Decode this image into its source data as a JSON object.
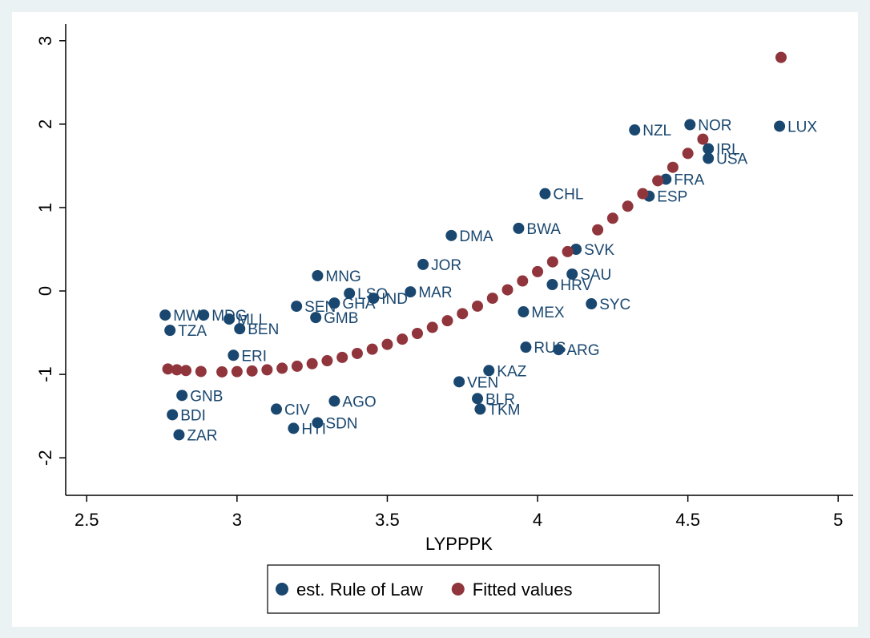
{
  "chart_data": {
    "type": "scatter",
    "x_label": "LYPPPK",
    "xlim": [
      2.43,
      5.05
    ],
    "ylim": [
      -2.45,
      3.2
    ],
    "xticks": [
      2.5,
      3,
      3.5,
      4,
      4.5,
      5
    ],
    "yticks": [
      -2,
      -1,
      0,
      1,
      2,
      3
    ],
    "grid": false,
    "legend": "bottom",
    "series": [
      {
        "name": "est. Rule of Law",
        "color": "#1a476f",
        "labels": [
          "LUX",
          "NZL",
          "NOR",
          "IRL",
          "USA",
          "FRA",
          "ESP",
          "CHL",
          "BWA",
          "SVK",
          "DMA",
          "JOR",
          "SAU",
          "HRV",
          "SYC",
          "MEX",
          "ARG",
          "RUS",
          "KAZ",
          "VEN",
          "BLR",
          "TKM",
          "MNG",
          "SEN",
          "GMB",
          "GHA",
          "LSO",
          "IND",
          "MAR",
          "MWI",
          "MDG",
          "MLI",
          "BEN",
          "TZA",
          "ERI",
          "GNB",
          "BDI",
          "ZAR",
          "CIV",
          "HTI",
          "SDN",
          "AGO"
        ],
        "x": [
          4.805,
          4.323,
          4.507,
          4.568,
          4.568,
          4.427,
          4.371,
          4.025,
          3.937,
          4.128,
          3.713,
          3.619,
          4.115,
          4.049,
          4.179,
          3.953,
          4.07,
          3.961,
          3.838,
          3.739,
          3.8,
          3.809,
          3.268,
          3.198,
          3.262,
          3.324,
          3.374,
          3.454,
          3.577,
          2.761,
          2.889,
          2.974,
          3.009,
          2.777,
          2.988,
          2.817,
          2.785,
          2.807,
          3.131,
          3.188,
          3.268,
          3.324
        ],
        "values": [
          1.975,
          1.93,
          1.994,
          1.705,
          1.59,
          1.34,
          1.137,
          1.166,
          0.751,
          0.5,
          0.665,
          0.318,
          0.202,
          0.077,
          -0.154,
          -0.25,
          -0.703,
          -0.674,
          -0.954,
          -1.089,
          -1.29,
          -1.416,
          0.183,
          -0.183,
          -0.318,
          -0.145,
          -0.029,
          -0.087,
          -0.01,
          -0.289,
          -0.289,
          -0.337,
          -0.453,
          -0.472,
          -0.771,
          -1.252,
          -1.484,
          -1.724,
          -1.416,
          -1.647,
          -1.58,
          -1.32
        ]
      },
      {
        "name": "Fitted values",
        "color": "#90353b",
        "x": [
          2.77,
          2.8,
          2.83,
          2.88,
          2.95,
          3.0,
          3.05,
          3.1,
          3.15,
          3.2,
          3.25,
          3.3,
          3.35,
          3.4,
          3.45,
          3.5,
          3.55,
          3.6,
          3.65,
          3.7,
          3.75,
          3.8,
          3.85,
          3.9,
          3.95,
          4.0,
          4.05,
          4.1,
          4.2,
          4.25,
          4.3,
          4.35,
          4.4,
          4.45,
          4.5,
          4.55,
          4.81
        ],
        "values": [
          -0.935,
          -0.945,
          -0.954,
          -0.965,
          -0.97,
          -0.967,
          -0.959,
          -0.945,
          -0.926,
          -0.902,
          -0.872,
          -0.836,
          -0.796,
          -0.749,
          -0.698,
          -0.64,
          -0.578,
          -0.509,
          -0.436,
          -0.357,
          -0.272,
          -0.182,
          -0.087,
          0.014,
          0.12,
          0.232,
          0.349,
          0.472,
          0.733,
          0.872,
          1.016,
          1.166,
          1.322,
          1.483,
          1.649,
          1.82,
          2.8
        ]
      }
    ]
  }
}
